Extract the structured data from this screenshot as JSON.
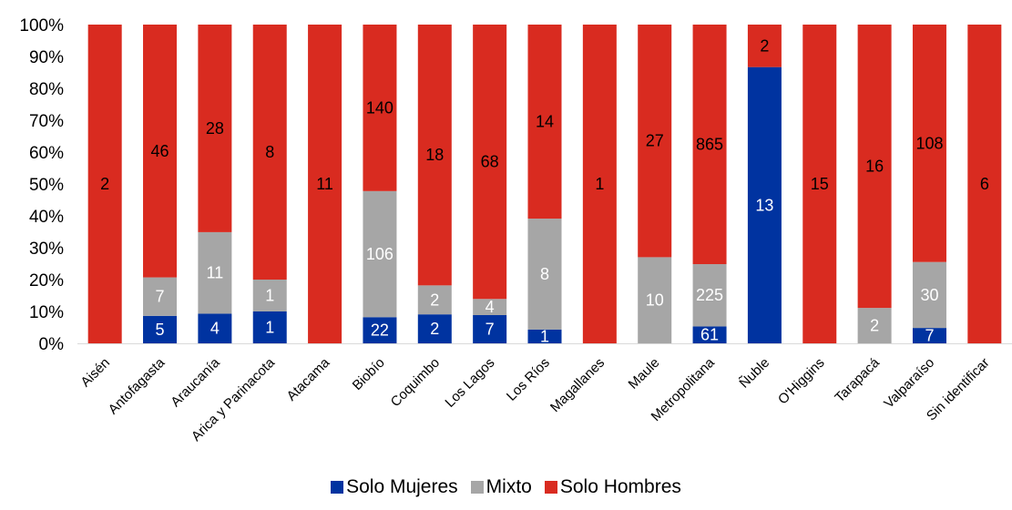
{
  "chart_data": {
    "type": "bar",
    "stacked": true,
    "normalized": true,
    "categories": [
      "Aisén",
      "Antofagasta",
      "Araucanía",
      "Arica y Parinacota",
      "Atacama",
      "Biobío",
      "Coquimbo",
      "Los Lagos",
      "Los Ríos",
      "Magallanes",
      "Maule",
      "Metropolitana",
      "Ñuble",
      "O'Higgins",
      "Tarapacá",
      "Valparaíso",
      "Sin identificar"
    ],
    "series": [
      {
        "name": "Solo Mujeres",
        "color": "#0033A0",
        "label_color": "#ffffff",
        "values": [
          0,
          5,
          4,
          1,
          0,
          22,
          2,
          7,
          1,
          0,
          0,
          61,
          13,
          0,
          0,
          7,
          0
        ]
      },
      {
        "name": "Mixto",
        "color": "#A6A6A6",
        "label_color": "#ffffff",
        "values": [
          0,
          7,
          11,
          1,
          0,
          106,
          2,
          4,
          8,
          0,
          10,
          225,
          0,
          0,
          2,
          30,
          0
        ]
      },
      {
        "name": "Solo Hombres",
        "color": "#D92B20",
        "label_color": "#000000",
        "values": [
          2,
          46,
          28,
          8,
          11,
          140,
          18,
          68,
          14,
          1,
          27,
          865,
          2,
          15,
          16,
          108,
          6
        ]
      }
    ],
    "ylim": [
      0,
      1
    ],
    "yticks": [
      "0%",
      "10%",
      "20%",
      "30%",
      "40%",
      "50%",
      "60%",
      "70%",
      "80%",
      "90%",
      "100%"
    ],
    "grid": false,
    "legend_position": "bottom",
    "title": "",
    "xlabel": "",
    "ylabel": ""
  }
}
